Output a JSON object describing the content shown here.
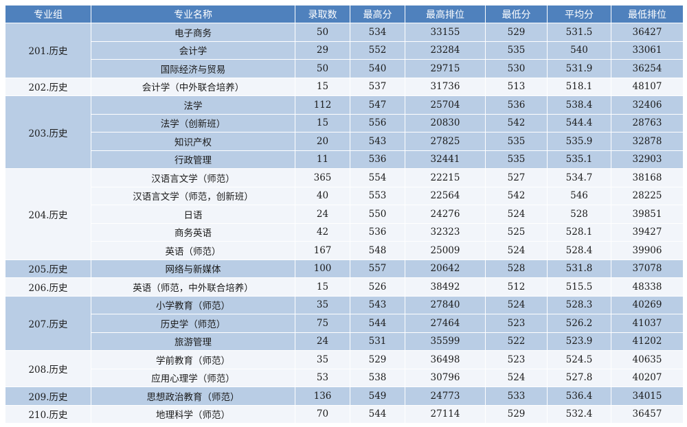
{
  "headers": [
    "专业组",
    "专业名称",
    "录取数",
    "最高分",
    "最高排位",
    "最低分",
    "平均分",
    "最低排位"
  ],
  "groups": [
    {
      "name": "201.历史",
      "rows": [
        {
          "major": "电子商务",
          "count": "50",
          "max": "534",
          "max_rank": "33155",
          "min": "529",
          "avg": "531.5",
          "min_rank": "36427"
        },
        {
          "major": "会计学",
          "count": "29",
          "max": "552",
          "max_rank": "23284",
          "min": "535",
          "avg": "540",
          "min_rank": "33061"
        },
        {
          "major": "国际经济与贸易",
          "count": "50",
          "max": "540",
          "max_rank": "29715",
          "min": "530",
          "avg": "531.9",
          "min_rank": "36254"
        }
      ]
    },
    {
      "name": "202.历史",
      "rows": [
        {
          "major": "会计学（中外联合培养）",
          "count": "15",
          "max": "537",
          "max_rank": "31736",
          "min": "513",
          "avg": "518.1",
          "min_rank": "48107"
        }
      ]
    },
    {
      "name": "203.历史",
      "rows": [
        {
          "major": "法学",
          "count": "112",
          "max": "547",
          "max_rank": "25704",
          "min": "536",
          "avg": "538.4",
          "min_rank": "32406"
        },
        {
          "major": "法学（创新班）",
          "count": "15",
          "max": "556",
          "max_rank": "20830",
          "min": "542",
          "avg": "544.4",
          "min_rank": "28763"
        },
        {
          "major": "知识产权",
          "count": "20",
          "max": "543",
          "max_rank": "27825",
          "min": "535",
          "avg": "535.9",
          "min_rank": "32878"
        },
        {
          "major": "行政管理",
          "count": "11",
          "max": "536",
          "max_rank": "32441",
          "min": "535",
          "avg": "535.1",
          "min_rank": "32903"
        }
      ]
    },
    {
      "name": "204.历史",
      "rows": [
        {
          "major": "汉语言文学（师范）",
          "count": "365",
          "max": "554",
          "max_rank": "22215",
          "min": "527",
          "avg": "534.7",
          "min_rank": "38168"
        },
        {
          "major": "汉语言文学（师范，创新班）",
          "count": "40",
          "max": "553",
          "max_rank": "22564",
          "min": "542",
          "avg": "546",
          "min_rank": "28225"
        },
        {
          "major": "日语",
          "count": "24",
          "max": "550",
          "max_rank": "24276",
          "min": "524",
          "avg": "528",
          "min_rank": "39851"
        },
        {
          "major": "商务英语",
          "count": "42",
          "max": "536",
          "max_rank": "32323",
          "min": "525",
          "avg": "528.1",
          "min_rank": "39427"
        },
        {
          "major": "英语（师范）",
          "count": "167",
          "max": "548",
          "max_rank": "25009",
          "min": "524",
          "avg": "528.4",
          "min_rank": "39906"
        }
      ]
    },
    {
      "name": "205.历史",
      "rows": [
        {
          "major": "网络与新媒体",
          "count": "100",
          "max": "557",
          "max_rank": "20642",
          "min": "528",
          "avg": "531.8",
          "min_rank": "37078"
        }
      ]
    },
    {
      "name": "206.历史",
      "rows": [
        {
          "major": "英语（师范，中外联合培养）",
          "count": "15",
          "max": "526",
          "max_rank": "38492",
          "min": "512",
          "avg": "515.5",
          "min_rank": "48338"
        }
      ]
    },
    {
      "name": "207.历史",
      "rows": [
        {
          "major": "小学教育（师范）",
          "count": "35",
          "max": "543",
          "max_rank": "27840",
          "min": "524",
          "avg": "528.3",
          "min_rank": "40269"
        },
        {
          "major": "历史学（师范）",
          "count": "75",
          "max": "544",
          "max_rank": "27464",
          "min": "523",
          "avg": "526.2",
          "min_rank": "41037"
        },
        {
          "major": "旅游管理",
          "count": "24",
          "max": "531",
          "max_rank": "35599",
          "min": "522",
          "avg": "523.9",
          "min_rank": "41202"
        }
      ]
    },
    {
      "name": "208.历史",
      "rows": [
        {
          "major": "学前教育（师范）",
          "count": "35",
          "max": "529",
          "max_rank": "36498",
          "min": "523",
          "avg": "524.5",
          "min_rank": "40635"
        },
        {
          "major": "应用心理学（师范）",
          "count": "53",
          "max": "538",
          "max_rank": "30796",
          "min": "524",
          "avg": "527.8",
          "min_rank": "40207"
        }
      ]
    },
    {
      "name": "209.历史",
      "rows": [
        {
          "major": "思想政治教育（师范）",
          "count": "136",
          "max": "549",
          "max_rank": "24773",
          "min": "533",
          "avg": "536.4",
          "min_rank": "34015"
        }
      ]
    },
    {
      "name": "210.历史",
      "rows": [
        {
          "major": "地理科学（师范）",
          "count": "70",
          "max": "544",
          "max_rank": "27114",
          "min": "529",
          "avg": "532.4",
          "min_rank": "36457"
        }
      ]
    }
  ]
}
